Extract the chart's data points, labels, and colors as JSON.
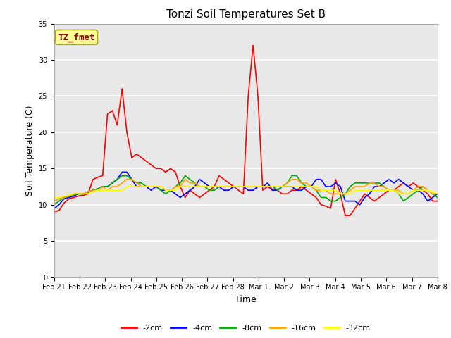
{
  "title": "Tonzi Soil Temperatures Set B",
  "xlabel": "Time",
  "ylabel": "Soil Temperature (C)",
  "ylim": [
    0,
    35
  ],
  "yticks": [
    0,
    5,
    10,
    15,
    20,
    25,
    30,
    35
  ],
  "annotation_text": "TZ_fmet",
  "annotation_color": "#8B0000",
  "annotation_bg": "#FFFF99",
  "annotation_edge": "#AAAA00",
  "series_colors": [
    "#FF0000",
    "#0000FF",
    "#00AA00",
    "#FFA500",
    "#FFFF00"
  ],
  "series_labels": [
    "-2cm",
    "-4cm",
    "-8cm",
    "-16cm",
    "-32cm"
  ],
  "x_labels": [
    "Feb 21",
    "Feb 22",
    "Feb 23",
    "Feb 24",
    "Feb 25",
    "Feb 26",
    "Feb 27",
    "Feb 28",
    "Mar 1",
    "Mar 2",
    "Mar 3",
    "Mar 4",
    "Mar 5",
    "Mar 6",
    "Mar 7",
    "Mar 8"
  ],
  "plot_bg": "#E8E8E8",
  "fig_bg": "#FFFFFF",
  "line_width": 1.2,
  "title_fontsize": 11,
  "axis_fontsize": 9,
  "tick_fontsize": 7,
  "legend_fontsize": 8,
  "data_2cm": [
    9.0,
    9.2,
    10.2,
    10.8,
    11.0,
    11.2,
    11.3,
    11.5,
    13.5,
    13.8,
    14.0,
    22.5,
    23.0,
    21.0,
    26.0,
    20.0,
    16.5,
    17.0,
    16.5,
    16.0,
    15.5,
    15.0,
    15.0,
    14.5,
    15.0,
    14.5,
    12.5,
    11.0,
    12.0,
    11.5,
    11.0,
    11.5,
    12.0,
    12.5,
    14.0,
    13.5,
    13.0,
    12.5,
    12.0,
    11.5,
    25.0,
    32.0,
    25.0,
    12.0,
    12.5,
    12.0,
    12.0,
    11.5,
    11.5,
    12.0,
    12.0,
    12.5,
    12.0,
    11.5,
    11.0,
    10.0,
    9.8,
    9.5,
    13.5,
    11.5,
    8.5,
    8.5,
    9.5,
    10.5,
    11.5,
    11.0,
    10.5,
    11.0,
    11.5,
    12.0,
    12.0,
    12.5,
    13.0,
    12.5,
    13.0,
    12.5,
    12.0,
    11.5,
    10.5,
    10.5
  ],
  "data_4cm": [
    9.5,
    10.0,
    10.8,
    11.0,
    11.2,
    11.5,
    11.5,
    11.8,
    12.0,
    12.2,
    12.5,
    12.5,
    13.0,
    13.5,
    14.5,
    14.5,
    13.5,
    12.5,
    12.5,
    12.5,
    12.0,
    12.5,
    12.0,
    12.0,
    12.0,
    11.5,
    11.0,
    11.5,
    12.0,
    12.5,
    13.5,
    13.0,
    12.5,
    12.5,
    12.5,
    12.0,
    12.0,
    12.5,
    12.5,
    12.5,
    12.0,
    12.0,
    12.5,
    12.5,
    13.0,
    12.0,
    12.0,
    12.5,
    12.5,
    12.5,
    12.0,
    12.0,
    12.5,
    12.5,
    13.5,
    13.5,
    12.5,
    12.5,
    13.0,
    12.5,
    10.5,
    10.5,
    10.5,
    10.0,
    11.0,
    11.5,
    12.5,
    12.5,
    13.0,
    13.5,
    13.0,
    13.5,
    13.0,
    12.5,
    12.0,
    12.0,
    11.5,
    10.5,
    11.0,
    11.5
  ],
  "data_8cm": [
    10.0,
    10.5,
    11.0,
    11.2,
    11.4,
    11.5,
    11.5,
    11.8,
    12.0,
    12.2,
    12.5,
    12.5,
    13.0,
    13.5,
    14.0,
    14.0,
    13.5,
    13.0,
    13.0,
    12.5,
    12.5,
    12.5,
    12.0,
    11.5,
    12.0,
    12.5,
    13.0,
    14.0,
    13.5,
    13.0,
    12.5,
    12.5,
    12.0,
    12.0,
    12.5,
    12.5,
    12.5,
    12.5,
    12.5,
    12.5,
    12.5,
    12.5,
    12.5,
    12.5,
    12.5,
    12.5,
    12.0,
    12.5,
    13.0,
    14.0,
    14.0,
    13.0,
    12.5,
    12.5,
    12.0,
    11.0,
    11.0,
    10.5,
    10.5,
    11.0,
    11.5,
    12.5,
    13.0,
    13.0,
    13.0,
    13.0,
    13.0,
    13.0,
    12.5,
    12.0,
    12.0,
    11.5,
    10.5,
    11.0,
    11.5,
    12.0,
    12.5,
    12.0,
    11.5,
    11.0
  ],
  "data_16cm": [
    10.5,
    10.8,
    11.0,
    11.2,
    11.5,
    11.5,
    11.5,
    11.8,
    12.0,
    12.0,
    12.5,
    12.0,
    12.5,
    12.5,
    13.0,
    13.5,
    13.5,
    13.0,
    12.5,
    12.5,
    12.5,
    12.5,
    12.5,
    12.0,
    12.0,
    12.5,
    12.5,
    13.5,
    13.0,
    13.0,
    12.5,
    12.5,
    12.5,
    12.5,
    12.5,
    12.5,
    12.5,
    12.5,
    12.5,
    12.5,
    12.5,
    12.5,
    12.5,
    12.5,
    12.5,
    12.5,
    12.5,
    12.5,
    13.0,
    13.5,
    13.5,
    13.0,
    13.0,
    12.5,
    12.0,
    12.0,
    12.0,
    11.5,
    11.5,
    11.5,
    11.5,
    12.0,
    12.5,
    12.5,
    12.5,
    13.0,
    13.0,
    12.5,
    12.5,
    12.0,
    12.0,
    12.0,
    11.5,
    11.5,
    12.0,
    12.5,
    12.5,
    12.0,
    11.5,
    11.5
  ],
  "data_32cm": [
    11.0,
    11.0,
    11.2,
    11.3,
    11.5,
    11.5,
    11.5,
    11.5,
    11.8,
    12.0,
    12.0,
    12.0,
    12.0,
    12.0,
    12.0,
    12.5,
    12.5,
    12.5,
    12.5,
    12.5,
    12.5,
    12.5,
    12.5,
    12.0,
    12.0,
    12.0,
    12.5,
    12.5,
    12.5,
    12.5,
    12.5,
    12.5,
    12.5,
    12.5,
    12.5,
    12.5,
    12.5,
    12.5,
    12.5,
    12.5,
    12.5,
    12.5,
    12.5,
    12.5,
    12.5,
    12.5,
    12.5,
    12.5,
    12.5,
    12.5,
    12.5,
    12.5,
    12.5,
    12.5,
    12.5,
    12.0,
    12.0,
    12.0,
    12.0,
    11.5,
    11.5,
    11.5,
    12.0,
    12.0,
    12.0,
    12.0,
    12.0,
    12.0,
    12.0,
    12.0,
    12.0,
    11.5,
    11.5,
    11.5,
    12.0,
    12.0,
    12.0,
    12.0,
    11.8,
    11.5
  ]
}
